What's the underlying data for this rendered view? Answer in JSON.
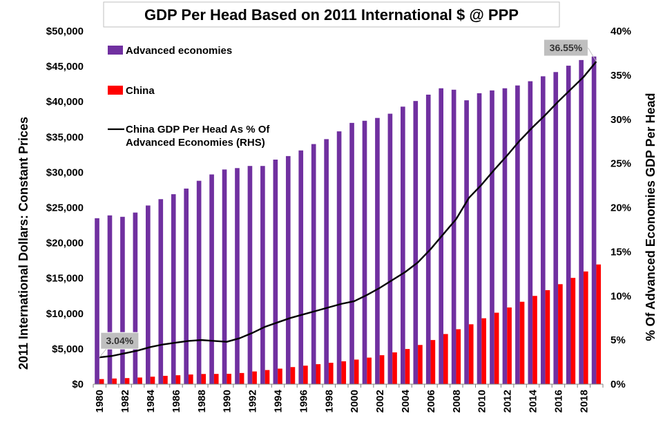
{
  "chart_data": {
    "type": "bar",
    "title": "GDP Per Head Based on 2011 International $ @ PPP",
    "ylabel": "2011 International Dollars: Constant Prices",
    "y2label": "% Of Advanced Economies GDP Per Head",
    "ylim": [
      0,
      50000
    ],
    "y2lim": [
      0,
      40
    ],
    "yticks": [
      "$0",
      "$5,000",
      "$10,000",
      "$15,000",
      "$20,000",
      "$25,000",
      "$30,000",
      "$35,000",
      "$40,000",
      "$45,000",
      "$50,000"
    ],
    "y2ticks": [
      "0%",
      "5%",
      "10%",
      "15%",
      "20%",
      "25%",
      "30%",
      "35%",
      "40%"
    ],
    "xticks": [
      "1980",
      "1982",
      "1984",
      "1986",
      "1988",
      "1990",
      "1992",
      "1994",
      "1996",
      "1998",
      "2000",
      "2002",
      "2004",
      "2006",
      "2008",
      "2010",
      "2012",
      "2014",
      "2016",
      "2018"
    ],
    "categories": [
      1980,
      1981,
      1982,
      1983,
      1984,
      1985,
      1986,
      1987,
      1988,
      1989,
      1990,
      1991,
      1992,
      1993,
      1994,
      1995,
      1996,
      1997,
      1998,
      1999,
      2000,
      2001,
      2002,
      2003,
      2004,
      2005,
      2006,
      2007,
      2008,
      2009,
      2010,
      2011,
      2012,
      2013,
      2014,
      2015,
      2016,
      2017,
      2018,
      2019
    ],
    "series": [
      {
        "name": "Advanced economies",
        "kind": "bar",
        "axis": "left",
        "color": "#7030a0",
        "values": [
          23500,
          23900,
          23700,
          24300,
          25300,
          26200,
          26900,
          27700,
          28800,
          29700,
          30400,
          30600,
          30900,
          30900,
          31800,
          32300,
          33100,
          34000,
          34700,
          35800,
          37000,
          37300,
          37700,
          38300,
          39300,
          40100,
          41000,
          41900,
          41700,
          40200,
          41200,
          41600,
          41900,
          42300,
          42900,
          43600,
          44200,
          45100,
          45900,
          46400
        ]
      },
      {
        "name": "China",
        "kind": "bar",
        "axis": "left",
        "color": "#ff0000",
        "values": [
          720,
          800,
          860,
          940,
          1060,
          1180,
          1260,
          1370,
          1440,
          1450,
          1470,
          1580,
          1800,
          2000,
          2200,
          2420,
          2620,
          2830,
          3030,
          3240,
          3480,
          3760,
          4100,
          4500,
          4980,
          5550,
          6250,
          7100,
          7780,
          8480,
          9330,
          10120,
          10860,
          11670,
          12500,
          13310,
          14160,
          15050,
          15960,
          16950
        ]
      },
      {
        "name": "China GDP Per Head As % Of Advanced Economies (RHS)",
        "kind": "line",
        "axis": "right",
        "color": "#000000",
        "values": [
          3.04,
          3.2,
          3.5,
          3.8,
          4.2,
          4.5,
          4.7,
          4.9,
          5.0,
          4.9,
          4.8,
          5.2,
          5.8,
          6.5,
          7.0,
          7.5,
          7.9,
          8.3,
          8.7,
          9.1,
          9.4,
          10.1,
          10.9,
          11.8,
          12.7,
          13.8,
          15.3,
          17.0,
          18.7,
          21.1,
          22.6,
          24.3,
          25.9,
          27.6,
          29.1,
          30.5,
          32.0,
          33.4,
          34.8,
          36.55
        ]
      }
    ],
    "annotations": [
      {
        "text": "3.04%",
        "year": 1980
      },
      {
        "text": "36.55%",
        "year": 2019
      }
    ],
    "grid": false,
    "legend_position": "top-left"
  }
}
